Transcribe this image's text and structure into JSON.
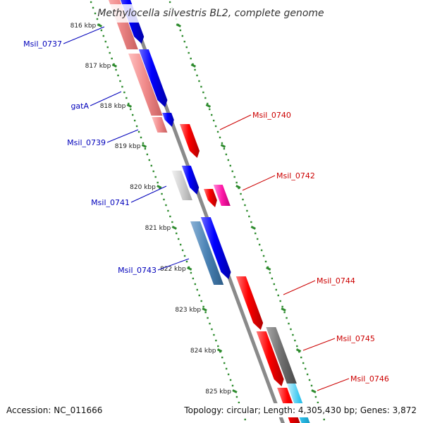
{
  "title": "Methylocella silvestris BL2, complete genome",
  "footer": {
    "accession": "Accession: NC_011666",
    "summary": "Topology: circular; Length: 4,305,430 bp; Genes: 3,872"
  },
  "colors": {
    "backbone": "#8a8a8a",
    "tick_dots": "#2e8b2e",
    "label_forward": "#0000bb",
    "label_reverse": "#cc0000"
  },
  "tick_labels": [
    "816 kbp",
    "817 kbp",
    "818 kbp",
    "819 kbp",
    "820 kbp",
    "821 kbp",
    "822 kbp",
    "823 kbp",
    "824 kbp",
    "825 kbp"
  ],
  "gene_labels": [
    {
      "text": "Msil_0737",
      "strand": "forward"
    },
    {
      "text": "gatA",
      "strand": "forward"
    },
    {
      "text": "Msil_0739",
      "strand": "forward"
    },
    {
      "text": "Msil_0741",
      "strand": "forward"
    },
    {
      "text": "Msil_0743",
      "strand": "forward"
    },
    {
      "text": "Msil_0740",
      "strand": "reverse"
    },
    {
      "text": "Msil_0742",
      "strand": "reverse"
    },
    {
      "text": "Msil_0744",
      "strand": "reverse"
    },
    {
      "text": "Msil_0745",
      "strand": "reverse"
    },
    {
      "text": "Msil_0746",
      "strand": "reverse"
    }
  ]
}
